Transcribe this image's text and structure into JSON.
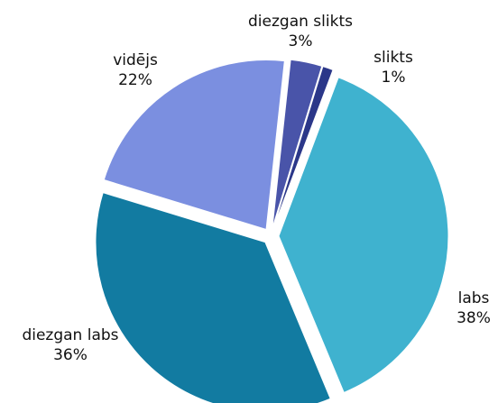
{
  "chart_data": {
    "type": "pie",
    "categories": [
      "slikts",
      "labs",
      "diezgan labs",
      "vidējs",
      "diezgan slikts"
    ],
    "values": [
      1,
      38,
      36,
      22,
      3
    ],
    "value_labels": [
      "1%",
      "38%",
      "36%",
      "22%",
      "3%"
    ],
    "colors": [
      "#2b3789",
      "#3fb2cf",
      "#127ba1",
      "#7b8fe0",
      "#4954a9"
    ]
  }
}
